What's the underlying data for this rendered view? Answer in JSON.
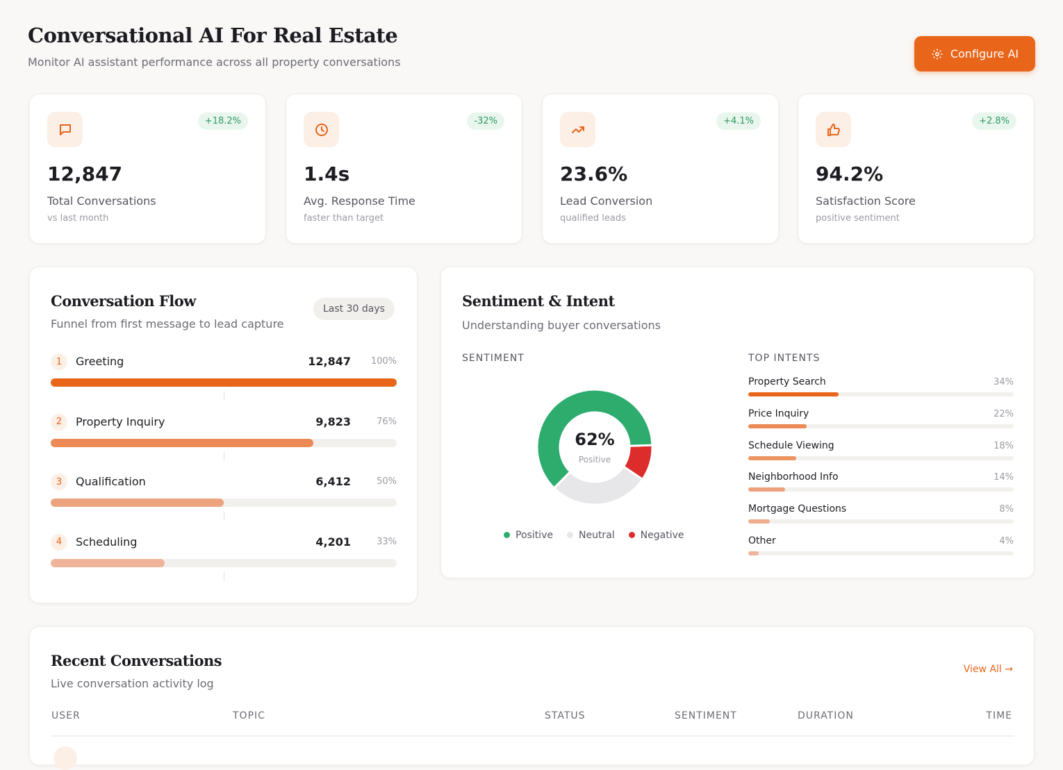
{
  "header": {
    "title": "Conversational AI For Real Estate",
    "subtitle": "Monitor AI assistant performance across all property conversations",
    "configure_label": "Configure AI"
  },
  "kpis": [
    {
      "icon": "message-icon",
      "change": "+18.2%",
      "value": "12,847",
      "label": "Total Conversations",
      "note": "vs last month"
    },
    {
      "icon": "clock-icon",
      "change": "-32%",
      "value": "1.4s",
      "label": "Avg. Response Time",
      "note": "faster than target"
    },
    {
      "icon": "trending-up-icon",
      "change": "+4.1%",
      "value": "23.6%",
      "label": "Lead Conversion",
      "note": "qualified leads"
    },
    {
      "icon": "thumbs-up-icon",
      "change": "+2.8%",
      "value": "94.2%",
      "label": "Satisfaction Score",
      "note": "positive sentiment"
    }
  ],
  "flow": {
    "title": "Conversation Flow",
    "subtitle": "Funnel from first message to lead capture",
    "range": "Last 30 days",
    "stages": [
      {
        "step": "1",
        "name": "Greeting",
        "count": "12,847",
        "pct": "100%",
        "value": 100,
        "color": "#e8651a"
      },
      {
        "step": "2",
        "name": "Property Inquiry",
        "count": "9,823",
        "pct": "76%",
        "value": 76,
        "color": "#eb8a55"
      },
      {
        "step": "3",
        "name": "Qualification",
        "count": "6,412",
        "pct": "50%",
        "value": 50,
        "color": "#eda47e"
      },
      {
        "step": "4",
        "name": "Scheduling",
        "count": "4,201",
        "pct": "33%",
        "value": 33,
        "color": "#f0b49a"
      }
    ]
  },
  "sentiment": {
    "title": "Sentiment & Intent",
    "subtitle": "Understanding buyer conversations",
    "section": "SENTIMENT",
    "center_value": "62%",
    "center_label": "Positive",
    "chart_data": {
      "type": "pie",
      "series": [
        {
          "name": "Positive",
          "value": 62,
          "color": "#2eac6d"
        },
        {
          "name": "Neutral",
          "value": 28,
          "color": "#e7e7ea"
        },
        {
          "name": "Negative",
          "value": 10,
          "color": "#dc2c2c"
        }
      ],
      "legend": "bottom"
    }
  },
  "intents": {
    "section": "TOP INTENTS",
    "items": [
      {
        "name": "Property Search",
        "pct": "34%",
        "value": 34,
        "color": "#e8651a"
      },
      {
        "name": "Price Inquiry",
        "pct": "22%",
        "value": 22,
        "color": "#eb8a55"
      },
      {
        "name": "Schedule Viewing",
        "pct": "18%",
        "value": 18,
        "color": "#ec9462"
      },
      {
        "name": "Neighborhood Info",
        "pct": "14%",
        "value": 14,
        "color": "#eda07a"
      },
      {
        "name": "Mortgage Questions",
        "pct": "8%",
        "value": 8,
        "color": "#efad8e"
      },
      {
        "name": "Other",
        "pct": "4%",
        "value": 4,
        "color": "#f0b49a"
      }
    ]
  },
  "recent": {
    "title": "Recent Conversations",
    "subtitle": "Live conversation activity log",
    "view_all": "View All →",
    "columns": [
      "USER",
      "TOPIC",
      "STATUS",
      "SENTIMENT",
      "DURATION",
      "TIME"
    ]
  }
}
